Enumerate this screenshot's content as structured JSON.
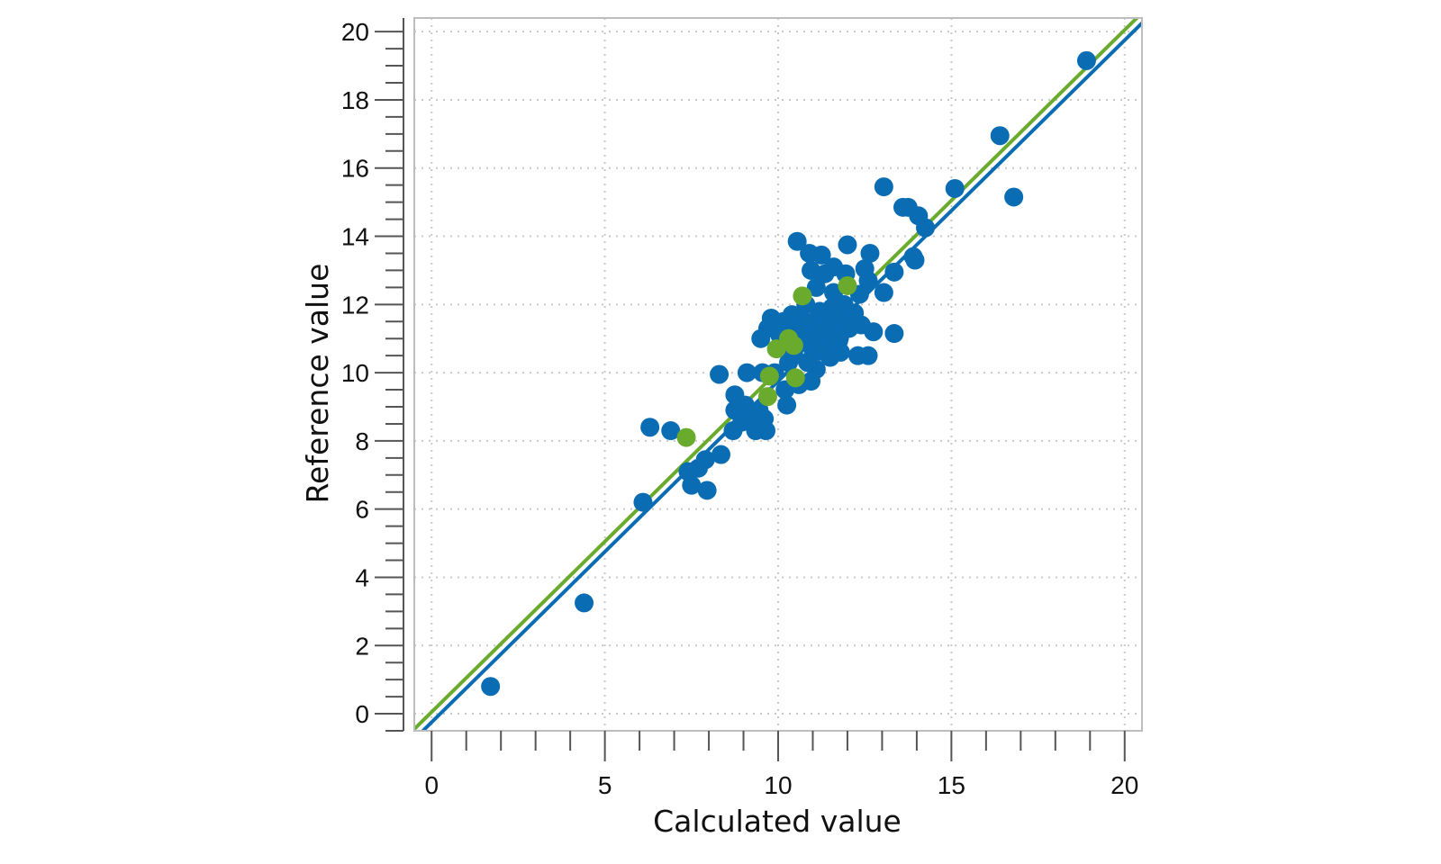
{
  "chart_data": {
    "type": "scatter",
    "xlabel": "Calculated value",
    "ylabel": "Reference value",
    "xlim": [
      -0.5,
      20.5
    ],
    "ylim": [
      -0.5,
      20.4
    ],
    "x_ticks": [
      0,
      5,
      10,
      15,
      20
    ],
    "y_ticks": [
      0,
      2,
      4,
      6,
      8,
      10,
      12,
      14,
      16,
      18,
      20
    ],
    "x_tick_labels": [
      "0",
      "5",
      "10",
      "15",
      "20"
    ],
    "y_tick_labels": [
      "0",
      "2",
      "4",
      "6",
      "8",
      "10",
      "12",
      "14",
      "16",
      "18",
      "20"
    ],
    "grid": true,
    "colors": {
      "calibration": "#0a6db4",
      "validation": "#6aab2e",
      "frame": "#bdbdbd",
      "grid": "#c8c8c8",
      "axis": "#555555"
    },
    "series": [
      {
        "role": "calibration",
        "color": "#0a6db4",
        "points": [
          [
            1.7,
            0.8
          ],
          [
            4.4,
            3.25
          ],
          [
            6.1,
            6.2
          ],
          [
            6.3,
            8.4
          ],
          [
            6.9,
            8.3
          ],
          [
            7.4,
            7.1
          ],
          [
            7.5,
            6.7
          ],
          [
            7.7,
            7.2
          ],
          [
            7.9,
            7.45
          ],
          [
            7.95,
            6.55
          ],
          [
            8.35,
            7.6
          ],
          [
            8.3,
            9.95
          ],
          [
            8.7,
            8.3
          ],
          [
            8.75,
            8.9
          ],
          [
            8.75,
            9.35
          ],
          [
            8.95,
            8.55
          ],
          [
            9.05,
            9.05
          ],
          [
            9.1,
            10.0
          ],
          [
            9.3,
            8.6
          ],
          [
            9.45,
            8.9
          ],
          [
            9.35,
            8.3
          ],
          [
            9.6,
            8.65
          ],
          [
            9.65,
            8.3
          ],
          [
            9.55,
            10.0
          ],
          [
            9.5,
            11.0
          ],
          [
            9.7,
            11.3
          ],
          [
            9.8,
            11.6
          ],
          [
            9.9,
            10.0
          ],
          [
            10.05,
            11.1
          ],
          [
            10.15,
            11.5
          ],
          [
            10.2,
            9.5
          ],
          [
            10.25,
            9.05
          ],
          [
            10.3,
            10.3
          ],
          [
            10.4,
            11.7
          ],
          [
            10.45,
            10.6
          ],
          [
            10.55,
            13.85
          ],
          [
            10.5,
            11.2
          ],
          [
            10.6,
            9.65
          ],
          [
            10.65,
            10.9
          ],
          [
            10.75,
            11.5
          ],
          [
            10.8,
            12.0
          ],
          [
            10.85,
            10.3
          ],
          [
            10.9,
            13.5
          ],
          [
            10.95,
            9.75
          ],
          [
            10.95,
            13.0
          ],
          [
            11.0,
            11.0
          ],
          [
            11.1,
            10.1
          ],
          [
            11.1,
            12.5
          ],
          [
            11.2,
            11.8
          ],
          [
            11.25,
            13.45
          ],
          [
            11.3,
            10.7
          ],
          [
            11.35,
            12.9
          ],
          [
            11.4,
            11.3
          ],
          [
            11.5,
            10.45
          ],
          [
            11.55,
            11.9
          ],
          [
            11.6,
            12.35
          ],
          [
            11.6,
            13.1
          ],
          [
            11.7,
            10.95
          ],
          [
            11.75,
            11.55
          ],
          [
            11.8,
            10.6
          ],
          [
            11.9,
            12.0
          ],
          [
            11.95,
            12.9
          ],
          [
            12.0,
            13.75
          ],
          [
            12.05,
            11.3
          ],
          [
            12.2,
            11.75
          ],
          [
            12.3,
            10.5
          ],
          [
            12.35,
            12.3
          ],
          [
            12.4,
            11.4
          ],
          [
            12.5,
            13.05
          ],
          [
            12.6,
            12.7
          ],
          [
            12.6,
            10.5
          ],
          [
            12.65,
            13.5
          ],
          [
            12.75,
            11.2
          ],
          [
            13.05,
            12.35
          ],
          [
            13.05,
            15.45
          ],
          [
            13.35,
            11.15
          ],
          [
            13.35,
            12.95
          ],
          [
            13.6,
            14.85
          ],
          [
            13.75,
            14.85
          ],
          [
            13.9,
            13.4
          ],
          [
            13.95,
            13.3
          ],
          [
            14.05,
            14.6
          ],
          [
            14.25,
            14.25
          ],
          [
            15.1,
            15.4
          ],
          [
            16.4,
            16.95
          ],
          [
            16.8,
            15.15
          ],
          [
            18.9,
            19.15
          ]
        ]
      },
      {
        "role": "validation",
        "color": "#6aab2e",
        "points": [
          [
            7.35,
            8.1
          ],
          [
            9.7,
            9.3
          ],
          [
            9.75,
            9.9
          ],
          [
            9.95,
            10.7
          ],
          [
            10.3,
            11.0
          ],
          [
            10.45,
            10.8
          ],
          [
            10.5,
            9.85
          ],
          [
            10.7,
            12.25
          ],
          [
            12.0,
            12.55
          ]
        ]
      }
    ],
    "regression_lines": [
      {
        "role": "calibration",
        "color": "#0a6db4",
        "slope": 1.0,
        "intercept": -0.25
      },
      {
        "role": "validation",
        "color": "#6aab2e",
        "slope": 1.0,
        "intercept": 0.05
      }
    ],
    "dense_cluster": {
      "role": "calibration",
      "color": "#0a6db4",
      "center": [
        11.3,
        11.1
      ],
      "radius": [
        0.75,
        0.75
      ]
    }
  }
}
